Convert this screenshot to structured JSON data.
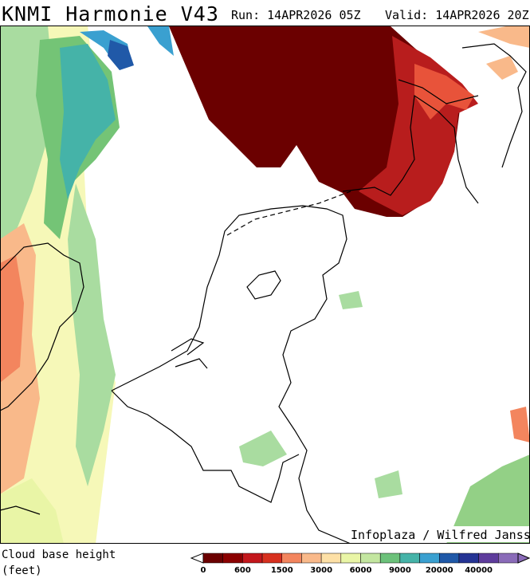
{
  "header": {
    "model": "KNMI Harmonie V43",
    "run": "Run: 14APR2026 05Z",
    "valid": "Valid: 14APR2026 20Z"
  },
  "credit": "Infoplaza / Wilfred Janssen",
  "legend": {
    "title": "Cloud base height",
    "unit": "(feet)",
    "colors": [
      "#6b0000",
      "#8b0000",
      "#a50f15",
      "#c3171c",
      "#d7301f",
      "#e8533a",
      "#f3855e",
      "#f9b98a",
      "#fde0a6",
      "#fff3b8",
      "#e9f5a6",
      "#c3e6a0",
      "#93d086",
      "#6cc17a",
      "#45b3a8",
      "#3aa0d0",
      "#2b7fbf",
      "#2059a8",
      "#253494",
      "#3d2a8c",
      "#5e3c9c",
      "#8a6bb8"
    ],
    "labels": [
      0,
      600,
      1500,
      3000,
      6000,
      9000,
      20000,
      40000
    ]
  }
}
